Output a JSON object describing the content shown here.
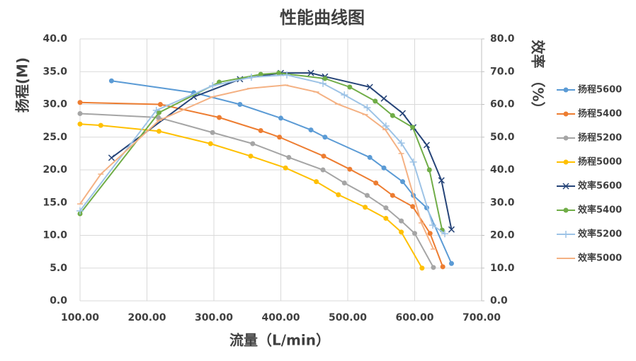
{
  "chart_data": {
    "type": "line",
    "title": "性能曲线图",
    "x_label": "流量（L/min）",
    "y_label": "扬程(M)",
    "y2_label": "效率 （%）",
    "xlim": [
      100,
      700
    ],
    "xticks": [
      {
        "value": 100,
        "label": "100.00"
      },
      {
        "value": 200,
        "label": "200.00"
      },
      {
        "value": 300,
        "label": "300.00"
      },
      {
        "value": 400,
        "label": "400.00"
      },
      {
        "value": 500,
        "label": "500.00"
      },
      {
        "value": 600,
        "label": "600.00"
      },
      {
        "value": 700,
        "label": "700.00"
      }
    ],
    "ylim": [
      0,
      40
    ],
    "yticks": [
      {
        "value": 0,
        "label": "0.0"
      },
      {
        "value": 5,
        "label": "5.0"
      },
      {
        "value": 10,
        "label": "10.0"
      },
      {
        "value": 15,
        "label": "15.0"
      },
      {
        "value": 20,
        "label": "20.0"
      },
      {
        "value": 25,
        "label": "25.0"
      },
      {
        "value": 30,
        "label": "30.0"
      },
      {
        "value": 35,
        "label": "35.0"
      },
      {
        "value": 40,
        "label": "40.0"
      }
    ],
    "y2lim": [
      0,
      80
    ],
    "y2ticks": [
      {
        "value": 0,
        "label": "0.0"
      },
      {
        "value": 10,
        "label": "10.0"
      },
      {
        "value": 20,
        "label": "20.0"
      },
      {
        "value": 30,
        "label": "30.0"
      },
      {
        "value": 40,
        "label": "40.0"
      },
      {
        "value": 50,
        "label": "50.0"
      },
      {
        "value": 60,
        "label": "60.0"
      },
      {
        "value": 70,
        "label": "70.0"
      },
      {
        "value": 80,
        "label": "80.0"
      }
    ],
    "grid": true,
    "series": [
      {
        "name": "扬程5600",
        "color": "#5b9bd5",
        "marker": "circle",
        "x": [
          147,
          270,
          339,
          400,
          445,
          466,
          533,
          554,
          582,
          598,
          618,
          655
        ],
        "values": [
          33.6,
          31.8,
          30.0,
          27.9,
          26.1,
          25.0,
          21.9,
          20.3,
          18.2,
          16.1,
          14.2,
          5.7
        ]
      },
      {
        "name": "扬程5400",
        "color": "#ed7d31",
        "marker": "circle",
        "x": [
          100,
          220,
          308,
          370,
          398,
          464,
          503,
          542,
          567,
          597,
          623,
          642
        ],
        "values": [
          30.3,
          30.0,
          28.0,
          26.0,
          25.0,
          22.1,
          20.1,
          18.0,
          16.1,
          14.4,
          10.3,
          5.2
        ]
      },
      {
        "name": "扬程5200",
        "color": "#a5a5a5",
        "marker": "circle",
        "x": [
          100,
          217,
          298,
          358,
          412,
          463,
          495,
          529,
          557,
          580,
          600,
          628
        ],
        "values": [
          28.6,
          28.0,
          25.7,
          24.0,
          21.9,
          20.0,
          18.0,
          16.1,
          14.2,
          12.2,
          10.3,
          5.1
        ]
      },
      {
        "name": "扬程5000",
        "color": "#ffc000",
        "marker": "circle",
        "x": [
          100,
          131,
          218,
          295,
          355,
          407,
          453,
          486,
          526,
          557,
          580,
          611
        ],
        "values": [
          27.0,
          26.8,
          25.9,
          24.0,
          22.1,
          20.3,
          18.2,
          16.2,
          14.3,
          12.6,
          10.5,
          5.0
        ]
      },
      {
        "name": "效率5600",
        "color": "#264478",
        "marker": "x",
        "axis": "y2",
        "x": [
          147,
          270,
          339,
          400,
          445,
          466,
          533,
          554,
          582,
          598,
          618,
          640,
          655
        ],
        "values": [
          43.7,
          62.3,
          67.7,
          69.6,
          69.6,
          68.5,
          65.3,
          61.8,
          57.3,
          53.0,
          47.6,
          36.8,
          21.8
        ]
      },
      {
        "name": "效率5400",
        "color": "#70ad47",
        "marker": "circle",
        "axis": "y2",
        "x": [
          100,
          218,
          308,
          370,
          397,
          466,
          503,
          541,
          567,
          597,
          622,
          641
        ],
        "values": [
          26.6,
          57.5,
          66.8,
          69.2,
          69.6,
          67.9,
          65.3,
          61.0,
          56.6,
          53.0,
          40.0,
          21.6
        ]
      },
      {
        "name": "效率5200",
        "color": "#9dc3e6",
        "marker": "plus",
        "axis": "y2",
        "x": [
          100,
          214,
          298,
          356,
          409,
          463,
          495,
          529,
          557,
          580,
          598,
          627,
          645
        ],
        "values": [
          27.5,
          58.2,
          65.7,
          68.3,
          69.0,
          66.4,
          62.9,
          59.0,
          53.4,
          48.2,
          42.4,
          23.1,
          20.5
        ]
      },
      {
        "name": "效率5000",
        "color": "#f4b183",
        "marker": "dash",
        "axis": "y2",
        "x": [
          100,
          131,
          218,
          298,
          354,
          407,
          453,
          485,
          526,
          556,
          580,
          610,
          628
        ],
        "values": [
          29.6,
          38.7,
          55.1,
          62.3,
          64.9,
          65.9,
          63.8,
          60.1,
          56.9,
          52.3,
          45.0,
          23.8,
          15.8
        ]
      }
    ]
  }
}
